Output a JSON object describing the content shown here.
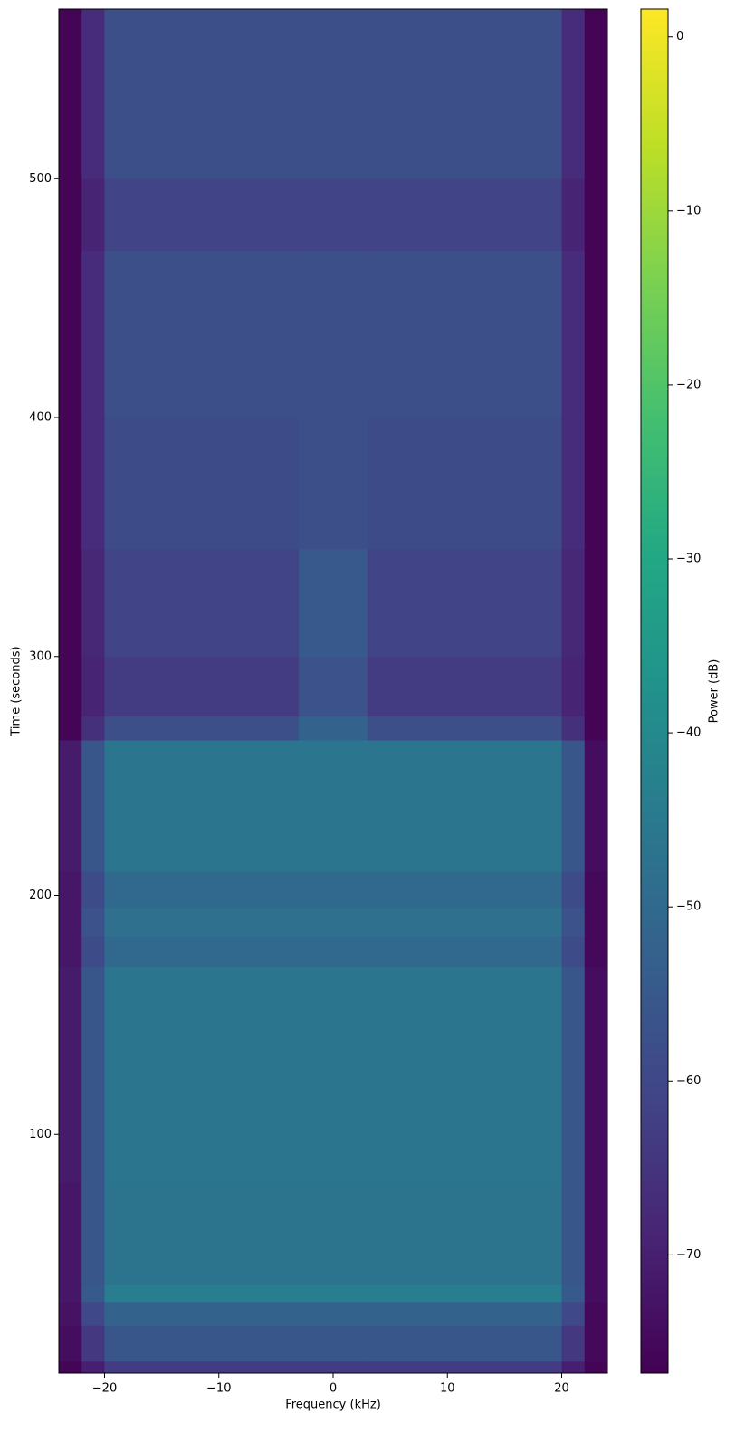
{
  "chart_data": {
    "type": "heatmap",
    "colormap": "viridis",
    "xlabel": "Frequency (kHz)",
    "ylabel": "Time (seconds)",
    "x_edges": [
      -24,
      -22,
      -20,
      -3,
      3,
      20,
      22,
      24
    ],
    "y_edges": [
      0,
      5,
      20,
      30,
      37,
      80,
      170,
      183,
      195,
      210,
      265,
      275,
      300,
      345,
      400,
      470,
      500,
      571
    ],
    "values": [
      [
        -76,
        -70,
        -63,
        -63,
        -63,
        -70,
        -76
      ],
      [
        -74,
        -64,
        -56,
        -56,
        -56,
        -64,
        -75
      ],
      [
        -73,
        -60,
        -52,
        -52,
        -52,
        -60,
        -75
      ],
      [
        -72,
        -55,
        -44,
        -44,
        -44,
        -55,
        -74
      ],
      [
        -72,
        -56,
        -47,
        -47,
        -47,
        -56,
        -74
      ],
      [
        -71,
        -56,
        -46,
        -46,
        -46,
        -56,
        -74
      ],
      [
        -72,
        -59,
        -50,
        -50,
        -50,
        -59,
        -75
      ],
      [
        -72,
        -57,
        -48,
        -48,
        -48,
        -57,
        -75
      ],
      [
        -72,
        -59,
        -50,
        -50,
        -50,
        -59,
        -75
      ],
      [
        -71,
        -56,
        -46,
        -46,
        -46,
        -56,
        -74
      ],
      [
        -76,
        -66,
        -58,
        -52,
        -58,
        -66,
        -76
      ],
      [
        -76,
        -69,
        -63,
        -57,
        -63,
        -69,
        -76
      ],
      [
        -76,
        -68,
        -61,
        -55,
        -61,
        -68,
        -76
      ],
      [
        -76,
        -67,
        -59,
        -58,
        -59,
        -67,
        -76
      ],
      [
        -76,
        -67,
        -58,
        -58,
        -58,
        -67,
        -76
      ],
      [
        -76,
        -69,
        -61,
        -61,
        -61,
        -69,
        -76
      ],
      [
        -76,
        -67,
        -58,
        -58,
        -58,
        -67,
        -76
      ]
    ],
    "xlim": [
      -24,
      24
    ],
    "ylim": [
      0,
      571
    ],
    "xticks": [
      {
        "value": -20,
        "label": "−20"
      },
      {
        "value": -10,
        "label": "−10"
      },
      0,
      10,
      20
    ],
    "yticks": [
      100,
      200,
      300,
      400,
      500
    ],
    "colorbar": {
      "label": "Power (dB)",
      "lim": [
        -76.8,
        1.6
      ],
      "ticks": [
        0,
        {
          "value": -10,
          "label": "−10"
        },
        {
          "value": -20,
          "label": "−20"
        },
        {
          "value": -30,
          "label": "−30"
        },
        {
          "value": -40,
          "label": "−40"
        },
        {
          "value": -50,
          "label": "−50"
        },
        {
          "value": -60,
          "label": "−60"
        },
        {
          "value": -70,
          "label": "−70"
        }
      ]
    }
  }
}
